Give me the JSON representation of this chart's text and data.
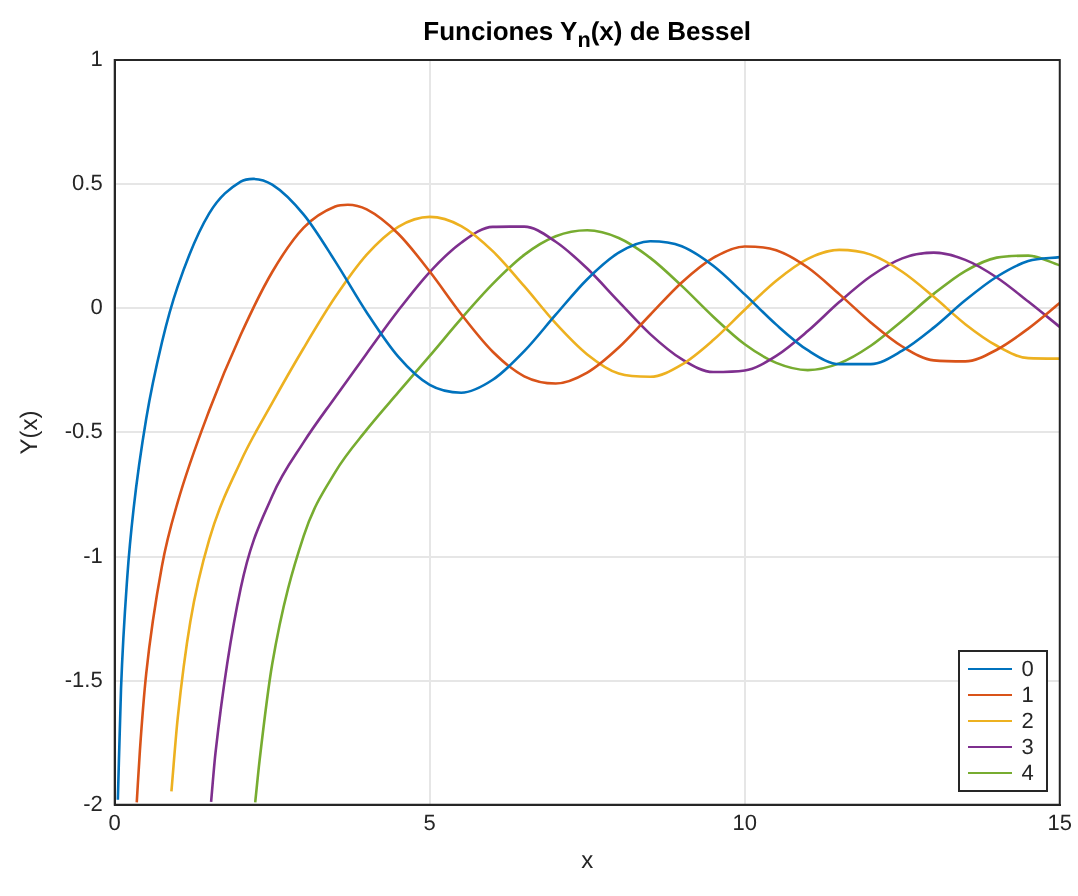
{
  "chart_data": {
    "type": "line",
    "title": "Funciones Y$_{n}$(x) de Bessel",
    "xlabel": "x",
    "ylabel": "Y(x)",
    "xlim": [
      0,
      15
    ],
    "ylim": [
      -2,
      1
    ],
    "xticks": [
      0,
      5,
      10,
      15
    ],
    "yticks": [
      -2,
      -1.5,
      -1,
      -0.5,
      0,
      0.5,
      1
    ],
    "grid": true,
    "legend": "bottom right",
    "marker": "none",
    "line_style": "solid",
    "series": [
      {
        "name": "0",
        "color": "#0072bd",
        "x": [
          0.05,
          0.1,
          0.2,
          0.3,
          0.5,
          0.75,
          1,
          1.5,
          2,
          2.2,
          2.5,
          3,
          3.5,
          4,
          4.5,
          5,
          5.5,
          6,
          6.5,
          7,
          7.5,
          8,
          8.5,
          9,
          9.5,
          10,
          10.5,
          11,
          11.5,
          12,
          12.5,
          13,
          13.5,
          14,
          14.5,
          15
        ],
        "values": [
          -1.98,
          -1.534,
          -1.081,
          -0.807,
          -0.445,
          -0.137,
          0.088,
          0.382,
          0.51,
          0.521,
          0.498,
          0.377,
          0.189,
          -0.017,
          -0.195,
          -0.309,
          -0.34,
          -0.288,
          -0.173,
          -0.026,
          0.117,
          0.224,
          0.27,
          0.25,
          0.171,
          0.056,
          -0.066,
          -0.169,
          -0.225,
          -0.225,
          -0.171,
          -0.078,
          0.032,
          0.127,
          0.19,
          0.206
        ]
      },
      {
        "name": "1",
        "color": "#d95319",
        "x": [
          0.35,
          0.4,
          0.5,
          0.75,
          1,
          1.5,
          2,
          2.5,
          3,
          3.5,
          3.7,
          4,
          4.5,
          5,
          5.5,
          6,
          6.5,
          7,
          7.5,
          8,
          8.5,
          9,
          9.5,
          10,
          10.5,
          11,
          11.5,
          12,
          12.5,
          13,
          13.5,
          14,
          14.5,
          15
        ],
        "values": [
          -1.99,
          -1.781,
          -1.472,
          -1.038,
          -0.781,
          -0.412,
          -0.107,
          0.146,
          0.325,
          0.41,
          0.417,
          0.398,
          0.3,
          0.148,
          -0.024,
          -0.175,
          -0.274,
          -0.303,
          -0.259,
          -0.158,
          -0.026,
          0.104,
          0.203,
          0.249,
          0.234,
          0.164,
          0.057,
          -0.057,
          -0.154,
          -0.21,
          -0.214,
          -0.167,
          -0.082,
          0.021
        ]
      },
      {
        "name": "2",
        "color": "#edb120",
        "x": [
          0.9,
          1,
          1.2,
          1.5,
          2,
          2.5,
          3,
          3.5,
          4,
          4.5,
          5,
          5.5,
          6,
          6.5,
          7,
          7.5,
          8,
          8.5,
          9,
          9.5,
          10,
          10.5,
          11,
          11.5,
          12,
          12.5,
          13,
          13.5,
          14,
          14.5,
          15
        ],
        "values": [
          -1.946,
          -1.651,
          -1.263,
          -0.932,
          -0.617,
          -0.381,
          -0.16,
          0.045,
          0.216,
          0.328,
          0.368,
          0.331,
          0.23,
          0.089,
          -0.061,
          -0.186,
          -0.263,
          -0.276,
          -0.227,
          -0.128,
          -0.006,
          0.111,
          0.199,
          0.235,
          0.216,
          0.147,
          0.046,
          -0.064,
          -0.151,
          -0.201,
          -0.203
        ]
      },
      {
        "name": "3",
        "color": "#7e2f8e",
        "x": [
          1.53,
          1.6,
          2,
          2.5,
          3,
          3.5,
          4,
          4.5,
          5,
          5.5,
          6,
          6.5,
          7,
          7.5,
          8,
          8.5,
          9,
          9.5,
          10,
          10.5,
          11,
          11.5,
          12,
          12.5,
          13,
          13.5,
          14,
          14.5,
          15
        ],
        "values": [
          -1.988,
          -1.79,
          -1.128,
          -0.756,
          -0.539,
          -0.358,
          -0.182,
          -0.009,
          0.146,
          0.264,
          0.328,
          0.329,
          0.268,
          0.16,
          0.027,
          -0.104,
          -0.205,
          -0.257,
          -0.251,
          -0.192,
          -0.092,
          0.025,
          0.129,
          0.201,
          0.224,
          0.195,
          0.124,
          0.027,
          -0.075
        ]
      },
      {
        "name": "4",
        "color": "#77ac30",
        "x": [
          2.23,
          2.3,
          2.5,
          3,
          3.5,
          4,
          4.5,
          5,
          5.5,
          6,
          6.5,
          7,
          7.5,
          8,
          8.5,
          9,
          9.5,
          10,
          10.5,
          11,
          11.5,
          12,
          12.5,
          13,
          13.5,
          14,
          14.5,
          15
        ],
        "values": [
          -1.99,
          -1.82,
          -1.433,
          -0.917,
          -0.66,
          -0.489,
          -0.339,
          -0.192,
          -0.042,
          0.098,
          0.215,
          0.29,
          0.314,
          0.283,
          0.203,
          0.09,
          -0.034,
          -0.145,
          -0.22,
          -0.249,
          -0.222,
          -0.151,
          -0.05,
          0.058,
          0.15,
          0.204,
          0.212,
          0.173
        ]
      }
    ]
  }
}
